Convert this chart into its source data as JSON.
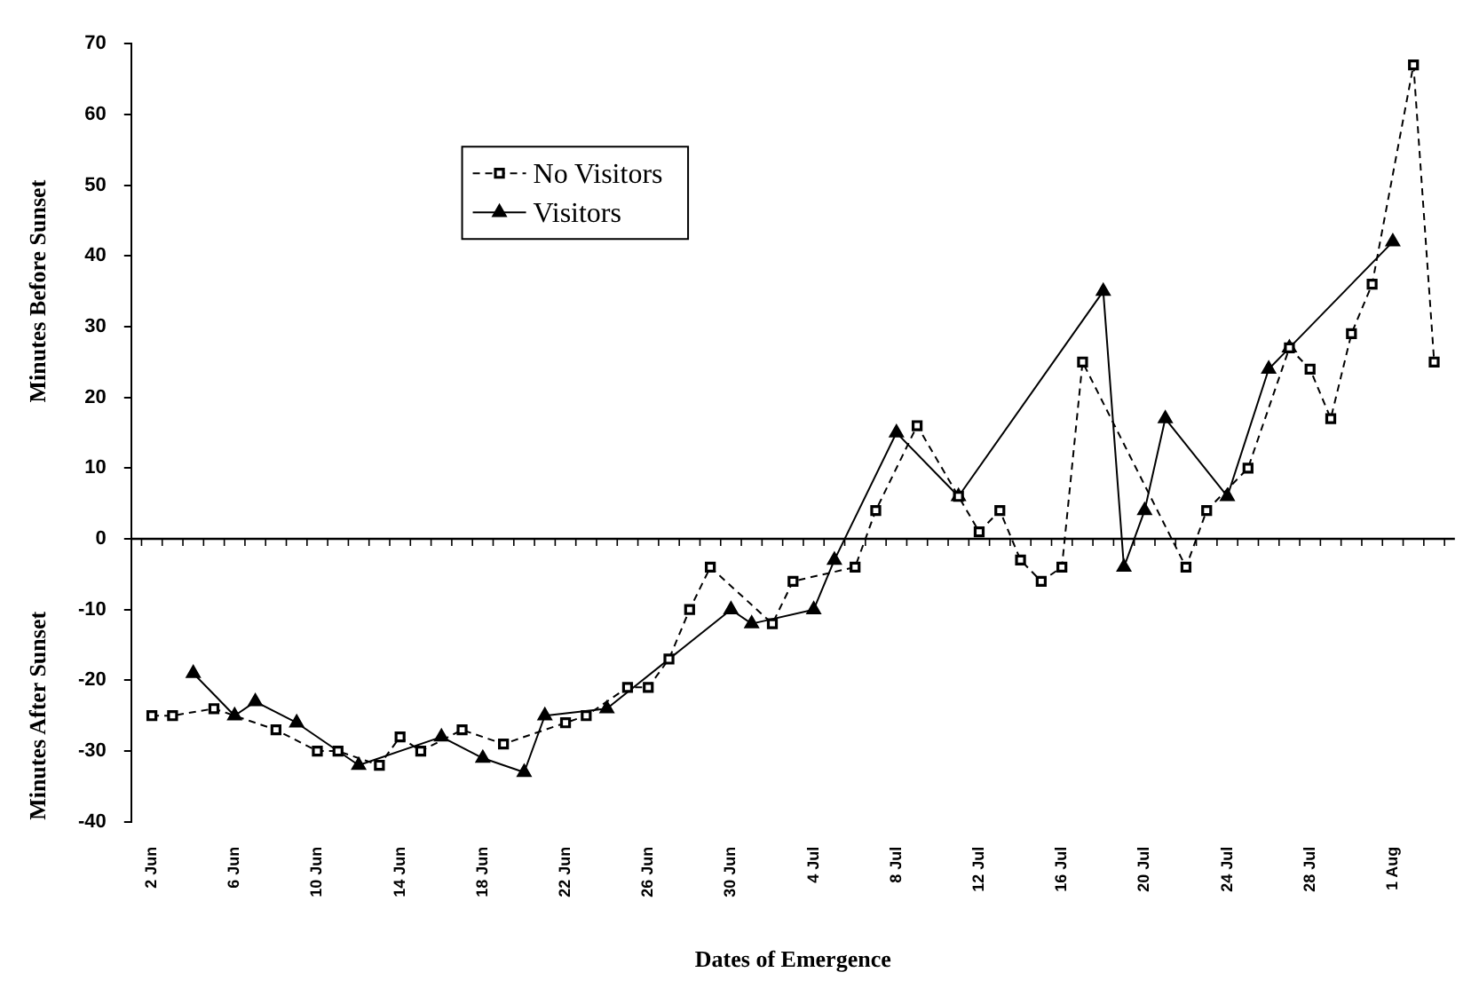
{
  "chart_data": {
    "type": "line",
    "xlabel": "Dates of Emergence",
    "ylabel": "Minutes Before Sunset",
    "annotations": [
      "Minutes After Sunset"
    ],
    "xlim": [
      "--06-01",
      "--08-04"
    ],
    "xticks": [
      {
        "value": "--06-02",
        "label": "2 Jun"
      },
      {
        "value": "--06-06",
        "label": "6 Jun"
      },
      {
        "value": "--06-10",
        "label": "10 Jun"
      },
      {
        "value": "--06-14",
        "label": "14 Jun"
      },
      {
        "value": "--06-18",
        "label": "18 Jun"
      },
      {
        "value": "--06-22",
        "label": "22 Jun"
      },
      {
        "value": "--06-26",
        "label": "26 Jun"
      },
      {
        "value": "--06-30",
        "label": "30 Jun"
      },
      {
        "value": "--07-04",
        "label": "4 Jul"
      },
      {
        "value": "--07-08",
        "label": "8 Jul"
      },
      {
        "value": "--07-12",
        "label": "12 Jul"
      },
      {
        "value": "--07-16",
        "label": "16 Jul"
      },
      {
        "value": "--07-20",
        "label": "20 Jul"
      },
      {
        "value": "--07-24",
        "label": "24 Jul"
      },
      {
        "value": "--07-28",
        "label": "28 Jul"
      },
      {
        "value": "--08-01",
        "label": "1 Aug"
      }
    ],
    "ylim": [
      -40,
      70
    ],
    "yticks": [
      -40,
      -30,
      -20,
      -10,
      0,
      10,
      20,
      30,
      40,
      50,
      60,
      70
    ],
    "grid": false,
    "legend": "top left",
    "ref_lines": [
      {
        "axis": "y",
        "value": 0,
        "color": "#000000"
      }
    ],
    "series": [
      {
        "name": "No Visitors",
        "color": "#000000",
        "marker": "square",
        "line_style": "dashed",
        "x": [
          "--06-02",
          "--06-03",
          "--06-05",
          "--06-08",
          "--06-10",
          "--06-11",
          "--06-13",
          "--06-14",
          "--06-15",
          "--06-17",
          "--06-19",
          "--06-22",
          "--06-23",
          "--06-25",
          "--06-26",
          "--06-27",
          "--06-28",
          "--06-29",
          "--07-02",
          "--07-03",
          "--07-06",
          "--07-07",
          "--07-09",
          "--07-11",
          "--07-12",
          "--07-13",
          "--07-14",
          "--07-15",
          "--07-16",
          "--07-17",
          "--07-22",
          "--07-23",
          "--07-25",
          "--07-27",
          "--07-28",
          "--07-29",
          "--07-30",
          "--07-31",
          "--08-02",
          "--08-03"
        ],
        "values": [
          -25,
          -25,
          -24,
          -27,
          -30,
          -30,
          -32,
          -28,
          -30,
          -27,
          -29,
          -26,
          -25,
          -21,
          -21,
          -17,
          -10,
          -4,
          -12,
          -6,
          -4,
          4,
          16,
          6,
          1,
          4,
          -3,
          -6,
          -4,
          25,
          -4,
          4,
          10,
          27,
          24,
          17,
          29,
          36,
          67,
          25
        ]
      },
      {
        "name": "Visitors",
        "color": "#000000",
        "marker": "triangle",
        "line_style": "solid",
        "x": [
          "--06-04",
          "--06-06",
          "--06-07",
          "--06-09",
          "--06-12",
          "--06-16",
          "--06-18",
          "--06-20",
          "--06-21",
          "--06-24",
          "--06-30",
          "--07-01",
          "--07-04",
          "--07-05",
          "--07-08",
          "--07-11",
          "--07-18",
          "--07-19",
          "--07-20",
          "--07-21",
          "--07-24",
          "--07-26",
          "--07-27",
          "--08-01"
        ],
        "values": [
          -19,
          -25,
          -23,
          -26,
          -32,
          -28,
          -31,
          -33,
          -25,
          -24,
          -10,
          -12,
          -10,
          -3,
          15,
          6,
          35,
          -4,
          4,
          17,
          6,
          24,
          27,
          42
        ]
      }
    ]
  }
}
